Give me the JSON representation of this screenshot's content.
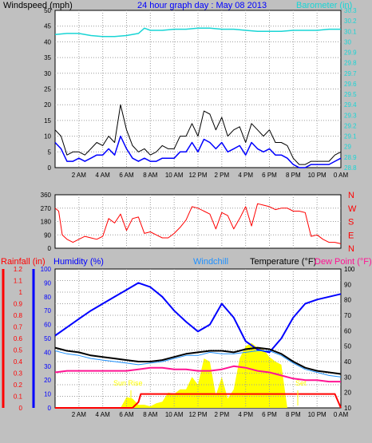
{
  "colors": {
    "background": "#c0c0c0",
    "plot_bg": "#ffffff",
    "grid": "#9c9c9c",
    "barometer": "#19d5d5",
    "wind_avg": "#0000ff",
    "wind_gust": "#000000",
    "wind_dir": "#ff0000",
    "humidity": "#0000ff",
    "temperature": "#000000",
    "dewpoint": "#ff1493",
    "windchill": "#1e90ff",
    "rainfall": "#ff0000",
    "solar": "#ffff00",
    "title": "#0000ff"
  },
  "chart_data": [
    {
      "type": "line",
      "id": "wind-baro",
      "title": "24 hour graph day : May 08 2013",
      "ylabel_left": "Windspeed (mph)",
      "ylabel_right": "Barometer (in)",
      "x_ticks": [
        "2 AM",
        "4 AM",
        "6 AM",
        "8 AM",
        "10 AM",
        "12 PM",
        "2 PM",
        "4 PM",
        "6 PM",
        "8 PM",
        "10 PM",
        "0 AM"
      ],
      "xlim": [
        0,
        24
      ],
      "ylim_left": [
        0,
        50
      ],
      "y_ticks_left": [
        "0",
        "5",
        "10",
        "15",
        "20",
        "25",
        "30",
        "35",
        "40",
        "45",
        "50"
      ],
      "ylim_right": [
        28.8,
        30.3
      ],
      "y_ticks_right": [
        "28.8",
        "28.9",
        "29",
        "29.1",
        "29.2",
        "29.3",
        "29.4",
        "29.5",
        "29.6",
        "29.7",
        "29.8",
        "29.9",
        "30",
        "30.1",
        "30.2",
        "30.3"
      ],
      "grid": true,
      "series": [
        {
          "name": "Barometer",
          "axis": "right",
          "x": [
            0,
            1,
            2,
            3,
            4,
            5,
            6,
            7,
            7.5,
            8,
            9,
            10,
            11,
            12,
            13,
            14,
            15,
            16,
            17,
            18,
            19,
            20,
            21,
            22,
            23,
            24
          ],
          "values": [
            30.07,
            30.08,
            30.08,
            30.06,
            30.05,
            30.05,
            30.06,
            30.08,
            30.13,
            30.11,
            30.11,
            30.12,
            30.12,
            30.13,
            30.13,
            30.12,
            30.12,
            30.11,
            30.1,
            30.1,
            30.1,
            30.11,
            30.11,
            30.11,
            30.12,
            30.12
          ]
        },
        {
          "name": "Wind gust",
          "axis": "left",
          "x": [
            0,
            0.5,
            1,
            1.5,
            2,
            2.5,
            3,
            3.5,
            4,
            4.5,
            5,
            5.5,
            6,
            6.5,
            7,
            7.5,
            8,
            8.5,
            9,
            9.5,
            10,
            10.5,
            11,
            11.5,
            12,
            12.5,
            13,
            13.5,
            14,
            14.5,
            15,
            15.5,
            16,
            16.5,
            17,
            17.5,
            18,
            18.5,
            19,
            19.5,
            20,
            20.5,
            21,
            21.5,
            22,
            22.5,
            23,
            23.5,
            24
          ],
          "values": [
            12,
            10,
            4,
            5,
            5,
            4,
            6,
            8,
            7,
            10,
            8,
            20,
            12,
            7,
            5,
            6,
            4,
            5,
            7,
            6,
            6,
            10,
            10,
            14,
            10,
            18,
            17,
            12,
            16,
            10,
            12,
            13,
            8,
            14,
            12,
            10,
            12,
            8,
            8,
            7,
            3,
            1,
            1,
            2,
            2,
            2,
            2,
            4,
            5
          ]
        },
        {
          "name": "Wind average",
          "axis": "left",
          "x": [
            0,
            0.5,
            1,
            1.5,
            2,
            2.5,
            3,
            3.5,
            4,
            4.5,
            5,
            5.5,
            6,
            6.5,
            7,
            7.5,
            8,
            8.5,
            9,
            9.5,
            10,
            10.5,
            11,
            11.5,
            12,
            12.5,
            13,
            13.5,
            14,
            14.5,
            15,
            15.5,
            16,
            16.5,
            17,
            17.5,
            18,
            18.5,
            19,
            19.5,
            20,
            20.5,
            21,
            21.5,
            22,
            22.5,
            23,
            23.5,
            24
          ],
          "values": [
            8,
            6,
            2,
            2,
            3,
            2,
            3,
            4,
            4,
            6,
            4,
            10,
            6,
            3,
            2,
            3,
            2,
            2,
            3,
            3,
            3,
            5,
            5,
            8,
            5,
            9,
            8,
            6,
            8,
            5,
            6,
            7,
            4,
            8,
            6,
            5,
            6,
            4,
            4,
            3,
            1,
            0,
            0,
            1,
            1,
            1,
            1,
            2,
            3
          ]
        }
      ]
    },
    {
      "type": "scatter",
      "id": "wind-direction",
      "ylim": [
        0,
        360
      ],
      "y_ticks_left": [
        "0",
        "90",
        "180",
        "270",
        "360"
      ],
      "y_ticks_right": [
        "N",
        "E",
        "S",
        "W",
        "N"
      ],
      "grid": true,
      "series": [
        {
          "name": "Wind direction",
          "x": [
            0,
            0.3,
            0.6,
            1,
            1.5,
            2,
            2.5,
            3,
            3.5,
            4,
            4.5,
            5,
            5.5,
            6,
            6.5,
            7,
            7.5,
            8,
            8.5,
            9,
            9.5,
            10,
            10.5,
            11,
            11.5,
            12,
            12.5,
            13,
            13.5,
            14,
            14.5,
            15,
            15.5,
            16,
            16.5,
            17,
            17.5,
            18,
            18.5,
            19,
            19.5,
            20,
            20.5,
            21,
            21.5,
            22,
            22.5,
            23,
            23.5,
            24
          ],
          "values": [
            270,
            250,
            90,
            60,
            40,
            60,
            80,
            70,
            60,
            80,
            200,
            170,
            230,
            120,
            200,
            210,
            100,
            110,
            90,
            70,
            70,
            100,
            140,
            190,
            280,
            270,
            250,
            230,
            130,
            240,
            220,
            130,
            200,
            280,
            150,
            300,
            290,
            280,
            260,
            270,
            270,
            250,
            250,
            240,
            80,
            90,
            60,
            40,
            40,
            30
          ]
        }
      ]
    },
    {
      "type": "line",
      "id": "temp-humidity",
      "ylabels": [
        "Rainfall (in)",
        "Humidity (%)",
        "Windchill",
        "Temperature (°F)",
        "Dew Point (°F)"
      ],
      "rain_ticks": [
        "0",
        "0.1",
        "0.2",
        "0.3",
        "0.4",
        "0.5",
        "0.6",
        "0.7",
        "0.8",
        "0.9",
        "1",
        "1.1",
        "1.2"
      ],
      "rain_lim": [
        0,
        1.2
      ],
      "humidity_ticks": [
        "0",
        "10",
        "20",
        "30",
        "40",
        "50",
        "60",
        "70",
        "80",
        "90",
        "100"
      ],
      "humidity_lim": [
        0,
        100
      ],
      "temp_ticks": [
        "10",
        "20",
        "30",
        "40",
        "50",
        "60",
        "70",
        "80",
        "90",
        "100"
      ],
      "temp_lim": [
        10,
        100
      ],
      "grid": true,
      "annotations": [
        "Sun Rise",
        "Set"
      ],
      "series": [
        {
          "name": "Humidity",
          "axis": "humidity",
          "x": [
            0,
            1,
            2,
            3,
            4,
            5,
            6,
            7,
            8,
            9,
            10,
            11,
            12,
            13,
            14,
            15,
            16,
            17,
            18,
            19,
            20,
            21,
            22,
            23,
            24
          ],
          "values": [
            52,
            58,
            64,
            70,
            75,
            80,
            85,
            90,
            87,
            80,
            70,
            62,
            55,
            60,
            75,
            65,
            48,
            42,
            40,
            50,
            65,
            75,
            78,
            80,
            82
          ]
        },
        {
          "name": "Temperature",
          "axis": "temp",
          "x": [
            0,
            1,
            2,
            3,
            4,
            5,
            6,
            7,
            8,
            9,
            10,
            11,
            12,
            13,
            14,
            15,
            16,
            17,
            18,
            19,
            20,
            21,
            22,
            23,
            24
          ],
          "values": [
            49,
            47,
            46,
            44,
            43,
            42,
            41,
            40,
            40,
            41,
            43,
            45,
            46,
            47,
            47,
            46,
            48,
            49,
            48,
            45,
            40,
            36,
            34,
            33,
            32
          ]
        },
        {
          "name": "Dew Point",
          "axis": "temp",
          "x": [
            0,
            1,
            2,
            3,
            4,
            5,
            6,
            7,
            8,
            9,
            10,
            11,
            12,
            13,
            14,
            15,
            16,
            17,
            18,
            19,
            20,
            21,
            22,
            23,
            24
          ],
          "values": [
            33,
            34,
            34,
            34,
            34,
            34,
            34,
            35,
            36,
            36,
            35,
            35,
            34,
            34,
            35,
            37,
            36,
            34,
            33,
            31,
            29,
            28,
            28,
            27,
            27
          ]
        },
        {
          "name": "Windchill",
          "axis": "temp",
          "x": [
            0,
            1,
            2,
            3,
            4,
            5,
            6,
            7,
            8,
            9,
            10,
            11,
            12,
            13,
            14,
            15,
            16,
            17,
            18,
            19,
            20,
            21,
            22,
            23,
            24
          ],
          "values": [
            47,
            45,
            44,
            42,
            41,
            40,
            39,
            38,
            39,
            40,
            42,
            44,
            44,
            46,
            45,
            45,
            46,
            47,
            47,
            44,
            39,
            35,
            33,
            31,
            30
          ]
        },
        {
          "name": "Rainfall",
          "axis": "rain",
          "x": [
            0,
            6.5,
            7,
            7.2,
            15,
            19.5,
            22,
            22.2,
            23,
            23.5,
            24
          ],
          "values": [
            0,
            0,
            0.05,
            0.12,
            0.12,
            0.12,
            0.12,
            0.12,
            0.12,
            0.12,
            0
          ]
        },
        {
          "name": "Solar",
          "type": "area",
          "axis": "temp",
          "x": [
            5.5,
            6,
            6.5,
            7,
            7.5,
            8,
            8.5,
            9,
            9.5,
            10,
            10.5,
            11,
            11.5,
            12,
            12.5,
            13,
            13.5,
            14,
            14.5,
            15,
            15.5,
            16,
            16.5,
            17,
            17.5,
            18,
            18.5,
            19,
            19.5
          ],
          "values": [
            10,
            17,
            16,
            12,
            12,
            11,
            13,
            14,
            20,
            19,
            22,
            22,
            30,
            25,
            42,
            40,
            18,
            30,
            16,
            22,
            42,
            50,
            52,
            49,
            48,
            43,
            40,
            38,
            10
          ]
        }
      ]
    }
  ]
}
